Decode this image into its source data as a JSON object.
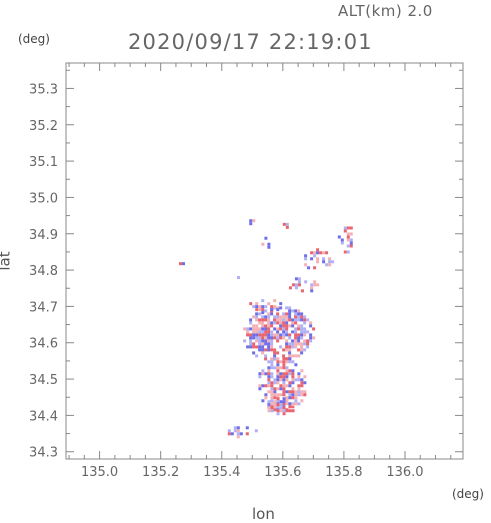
{
  "header": {
    "altitude_label": "ALT(km)  2.0",
    "timestamp": "2020/09/17 22:19:01"
  },
  "chart_data": {
    "type": "heatmap",
    "title": "2020/09/17 22:19:01",
    "xlabel": "lon",
    "ylabel": "lat",
    "x_unit": "(deg)",
    "y_unit": "(deg)",
    "xlim": [
      134.89,
      136.19
    ],
    "ylim": [
      34.28,
      35.37
    ],
    "x_ticks": [
      135.0,
      135.2,
      135.4,
      135.6,
      135.8,
      136.0
    ],
    "y_ticks": [
      34.3,
      34.4,
      34.5,
      34.6,
      34.7,
      34.8,
      34.9,
      35.0,
      35.1,
      35.2,
      35.3
    ],
    "x_tick_labels": [
      "135.0",
      "135.2",
      "135.4",
      "135.6",
      "135.8",
      "136.0"
    ],
    "y_tick_labels": [
      "34.3",
      "34.4",
      "34.5",
      "34.6",
      "34.7",
      "34.8",
      "34.9",
      "35.0",
      "35.1",
      "35.2",
      "35.3"
    ],
    "grid": false,
    "colors": {
      "positive": "#e8646e",
      "negative": "#6e6ee8",
      "weak_positive": "#f4b0b4",
      "weak_negative": "#b0b0f4"
    },
    "echo_regions": [
      {
        "lon": [
          135.47,
          135.7
        ],
        "lat": [
          34.55,
          34.7
        ],
        "density": 0.75
      },
      {
        "lon": [
          135.52,
          135.68
        ],
        "lat": [
          34.41,
          34.56
        ],
        "density": 0.7
      },
      {
        "lon": [
          135.55,
          135.64
        ],
        "lat": [
          34.4,
          34.45
        ],
        "density": 0.6
      },
      {
        "lon": [
          135.49,
          135.6
        ],
        "lat": [
          34.68,
          34.72
        ],
        "density": 0.4
      },
      {
        "lon": [
          135.65,
          135.78
        ],
        "lat": [
          34.8,
          34.86
        ],
        "density": 0.3
      },
      {
        "lon": [
          135.78,
          135.84
        ],
        "lat": [
          34.85,
          34.92
        ],
        "density": 0.35
      },
      {
        "lon": [
          135.62,
          135.68
        ],
        "lat": [
          34.74,
          34.78
        ],
        "density": 0.3
      },
      {
        "lon": [
          135.67,
          135.72
        ],
        "lat": [
          34.74,
          34.78
        ],
        "density": 0.3
      },
      {
        "lon": [
          135.49,
          135.51
        ],
        "lat": [
          34.92,
          34.94
        ],
        "density": 0.7
      },
      {
        "lon": [
          135.6,
          135.62
        ],
        "lat": [
          34.91,
          34.93
        ],
        "density": 0.6
      },
      {
        "lon": [
          135.26,
          135.28
        ],
        "lat": [
          34.81,
          34.83
        ],
        "density": 0.6
      },
      {
        "lon": [
          135.41,
          135.52
        ],
        "lat": [
          34.34,
          34.37
        ],
        "density": 0.45
      },
      {
        "lon": [
          135.45,
          135.47
        ],
        "lat": [
          34.77,
          34.8
        ],
        "density": 0.35
      },
      {
        "lon": [
          135.52,
          135.56
        ],
        "lat": [
          34.85,
          34.9
        ],
        "density": 0.25
      }
    ]
  }
}
